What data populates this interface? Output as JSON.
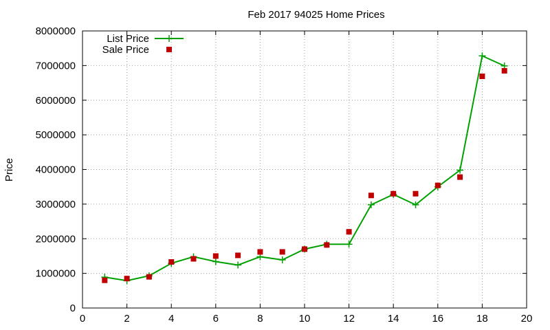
{
  "chart_data": {
    "type": "line",
    "title": "Feb 2017 94025 Home Prices",
    "xlabel": "",
    "ylabel": "Price",
    "xlim": [
      0,
      20
    ],
    "ylim": [
      0,
      8000000
    ],
    "xticks": [
      0,
      2,
      4,
      6,
      8,
      10,
      12,
      14,
      16,
      18,
      20
    ],
    "yticks": [
      0,
      1000000,
      2000000,
      3000000,
      4000000,
      5000000,
      6000000,
      7000000,
      8000000
    ],
    "xtick_labels": [
      "0",
      "2",
      "4",
      "6",
      "8",
      "10",
      "12",
      "14",
      "16",
      "18",
      "20"
    ],
    "ytick_labels": [
      "0",
      "1000000",
      "2000000",
      "3000000",
      "4000000",
      "5000000",
      "6000000",
      "7000000",
      "8000000"
    ],
    "grid": true,
    "legend_position": "top-left",
    "series": [
      {
        "name": "List Price",
        "kind": "line-with-plus-markers",
        "color": "#00a000",
        "x": [
          1,
          2,
          3,
          4,
          5,
          6,
          7,
          8,
          9,
          10,
          11,
          12,
          13,
          14,
          15,
          16,
          17,
          18,
          19
        ],
        "y": [
          890000,
          790000,
          930000,
          1290000,
          1480000,
          1340000,
          1240000,
          1480000,
          1390000,
          1700000,
          1840000,
          1840000,
          2980000,
          3280000,
          2980000,
          3500000,
          3980000,
          7280000,
          6990000
        ]
      },
      {
        "name": "Sale Price",
        "kind": "square-markers",
        "color": "#c00000",
        "x": [
          1,
          2,
          3,
          4,
          5,
          6,
          7,
          8,
          9,
          10,
          11,
          12,
          13,
          14,
          15,
          16,
          17,
          18,
          19
        ],
        "y": [
          800000,
          850000,
          900000,
          1330000,
          1420000,
          1500000,
          1520000,
          1620000,
          1620000,
          1700000,
          1820000,
          2200000,
          3250000,
          3300000,
          3300000,
          3540000,
          3780000,
          6690000,
          6850000
        ]
      }
    ]
  }
}
